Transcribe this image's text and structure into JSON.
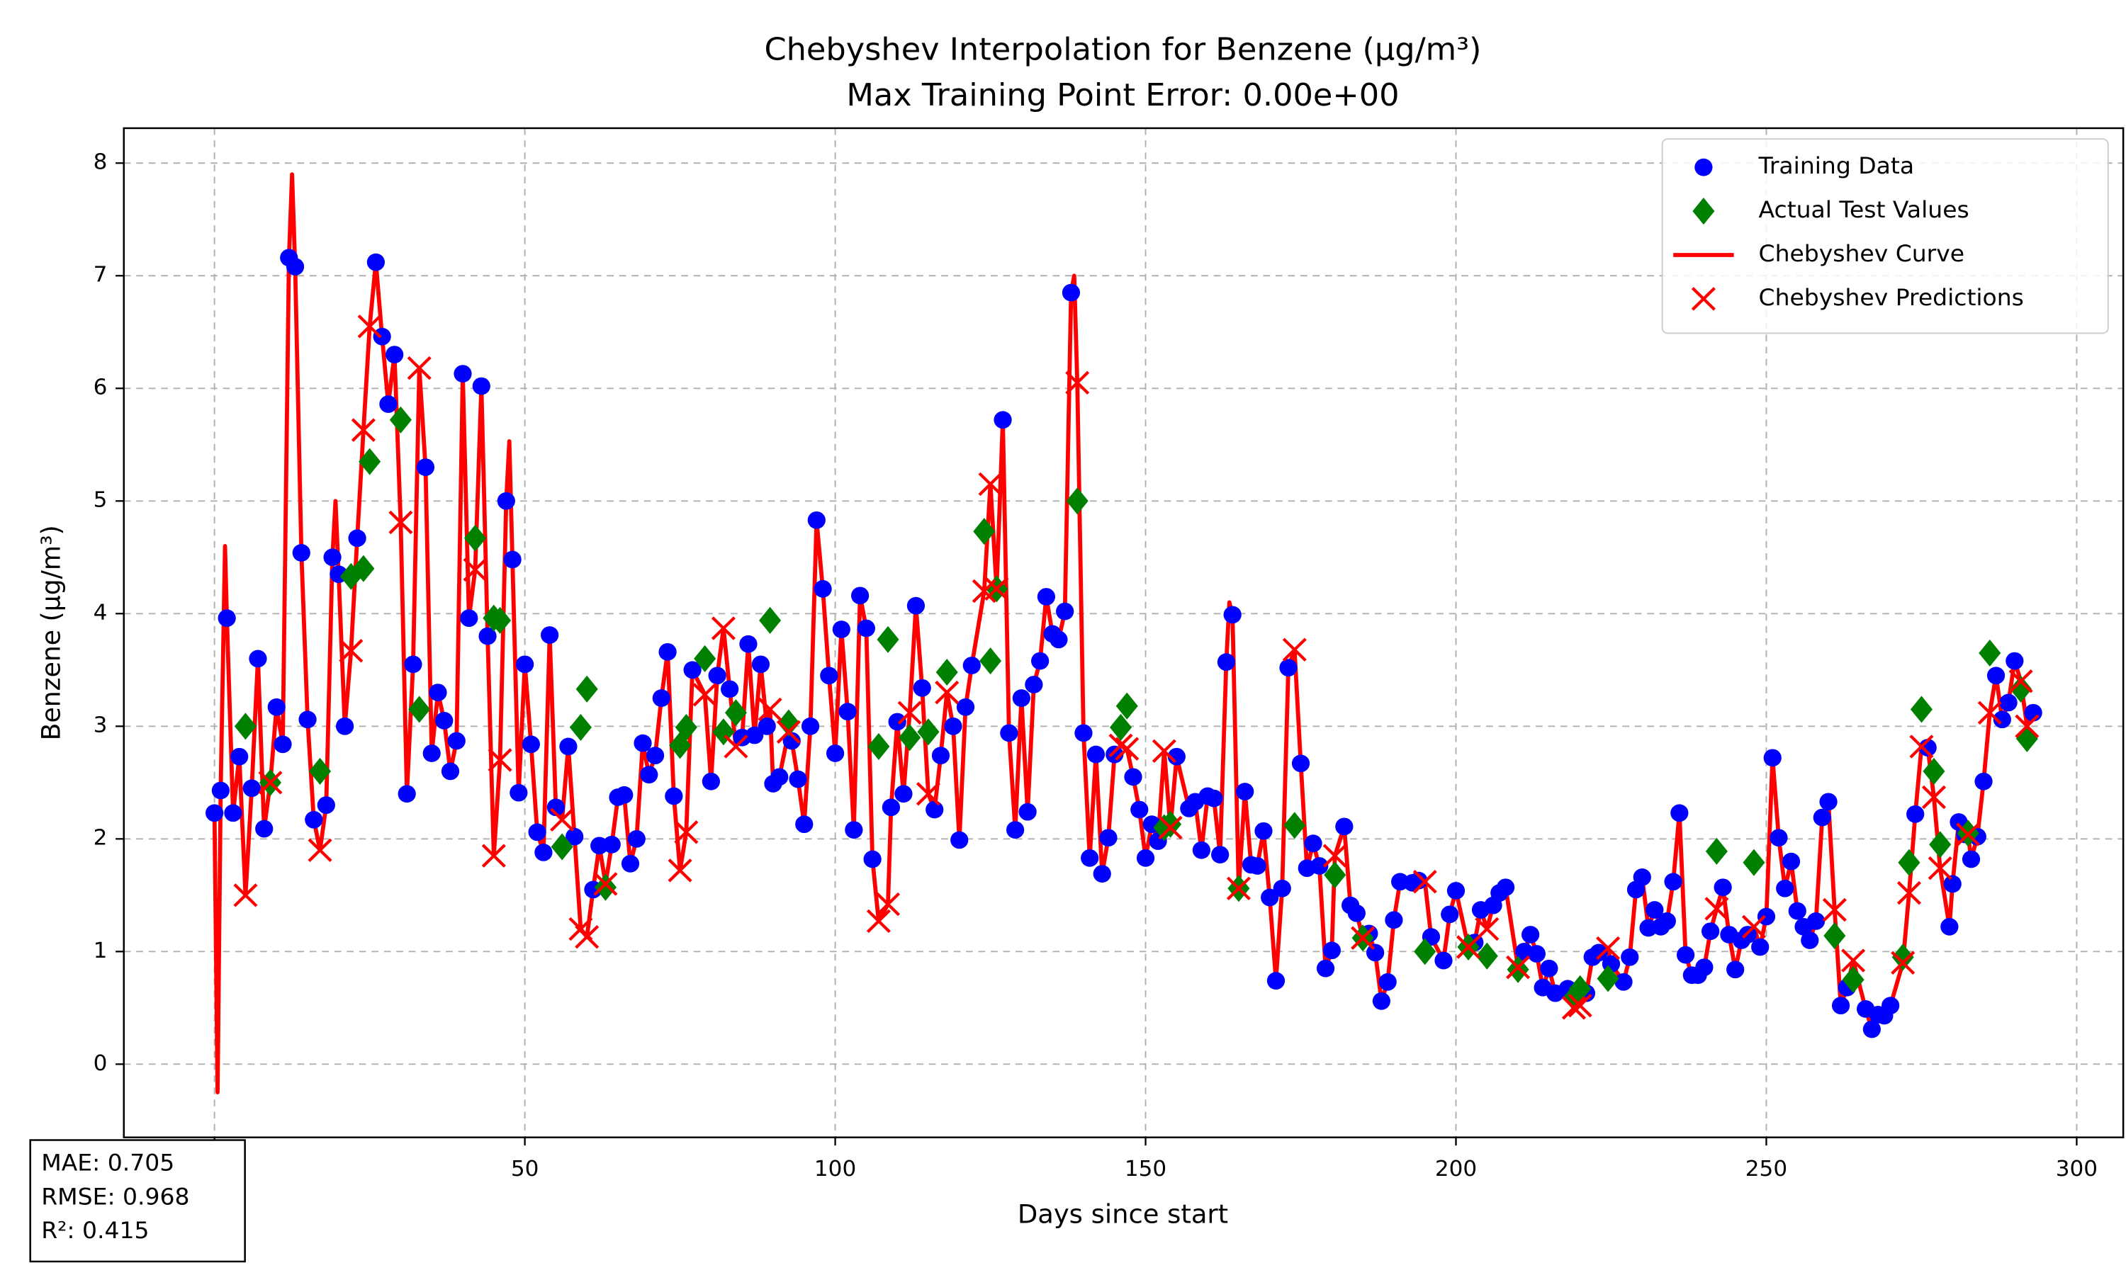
{
  "chart_data": {
    "type": "scatter",
    "title": "Chebyshev Interpolation for Benzene (µg/m³)",
    "subtitle": "Max Training Point Error: 0.00e+00",
    "xlabel": "Days since start",
    "ylabel": "Benzene (µg/m³)",
    "xlim": [
      -14.6,
      307.5
    ],
    "ylim": [
      -0.65,
      8.31
    ],
    "xticks": [
      0,
      50,
      100,
      150,
      200,
      250,
      300
    ],
    "yticks": [
      0,
      1,
      2,
      3,
      4,
      5,
      6,
      7,
      8
    ],
    "grid": true,
    "legend": "upper right",
    "stats": [
      "MAE: 0.705",
      "RMSE: 0.968",
      "R²: 0.415"
    ],
    "series": [
      {
        "name": "Training Data",
        "type": "scatter",
        "marker": "circle",
        "color": "#0000ff",
        "x": [
          0,
          1,
          2,
          3,
          4,
          6,
          7,
          8,
          10,
          11,
          12,
          13,
          14,
          15,
          16,
          18,
          19,
          20,
          21,
          23,
          26,
          27,
          28,
          29,
          31,
          32,
          34,
          35,
          36,
          37,
          38,
          39,
          40,
          41,
          43,
          44,
          47,
          48,
          49,
          50,
          51,
          52,
          53,
          54,
          55,
          57,
          58,
          61,
          62,
          64,
          65,
          66,
          67,
          68,
          69,
          70,
          71,
          72,
          73,
          74,
          77,
          80,
          81,
          83,
          85,
          86,
          87,
          88,
          89,
          90,
          91,
          93,
          94,
          95,
          96,
          97,
          98,
          99,
          100,
          101,
          102,
          103,
          104,
          105,
          106,
          109,
          110,
          111,
          113,
          114,
          116,
          117,
          119,
          120,
          121,
          122,
          127,
          128,
          129,
          130,
          131,
          132,
          133,
          134,
          135,
          136,
          137,
          138,
          140,
          141,
          142,
          143,
          144,
          145,
          148,
          149,
          150,
          151,
          152,
          155,
          157,
          158,
          159,
          160,
          161,
          162,
          163,
          164,
          166,
          167,
          168,
          169,
          170,
          171,
          172,
          173,
          175,
          176,
          177,
          178,
          179,
          180,
          182,
          183,
          184,
          186,
          187,
          188,
          189,
          190,
          191,
          193,
          194,
          196,
          198,
          199,
          200,
          203,
          204,
          206,
          207,
          208,
          211,
          212,
          213,
          214,
          215,
          216,
          218,
          221,
          222,
          223,
          225,
          227,
          228,
          229,
          230,
          231,
          232,
          233,
          234,
          235,
          236,
          237,
          238,
          239,
          240,
          241,
          243,
          244,
          245,
          246,
          247,
          249,
          250,
          251,
          252,
          253,
          254,
          255,
          256,
          257,
          258,
          259,
          260,
          262,
          263,
          266,
          267,
          268,
          269,
          270,
          274,
          276,
          279.5,
          280,
          281,
          282,
          283,
          284,
          285,
          287,
          288,
          289,
          290,
          293
        ],
        "values": [
          2.23,
          2.43,
          3.96,
          2.23,
          2.73,
          2.45,
          3.6,
          2.09,
          3.17,
          2.84,
          7.16,
          7.08,
          4.54,
          3.06,
          2.17,
          2.3,
          4.5,
          4.35,
          3.0,
          4.67,
          7.12,
          6.46,
          5.86,
          6.3,
          2.4,
          3.55,
          5.3,
          2.76,
          3.3,
          3.05,
          2.6,
          2.87,
          6.13,
          3.96,
          6.02,
          3.8,
          5.0,
          4.48,
          2.41,
          3.55,
          2.84,
          2.06,
          1.88,
          3.81,
          2.28,
          2.82,
          2.02,
          1.55,
          1.94,
          1.95,
          2.37,
          2.39,
          1.78,
          2.0,
          2.85,
          2.57,
          2.74,
          3.25,
          3.66,
          2.38,
          3.5,
          2.51,
          3.45,
          3.33,
          2.9,
          3.73,
          2.92,
          3.55,
          3.0,
          2.49,
          2.55,
          2.87,
          2.53,
          2.13,
          3.0,
          4.83,
          4.22,
          3.45,
          2.76,
          3.86,
          3.13,
          2.08,
          4.16,
          3.87,
          1.82,
          2.28,
          3.04,
          2.4,
          4.07,
          3.34,
          2.26,
          2.74,
          3.0,
          1.99,
          3.17,
          3.54,
          5.72,
          2.94,
          2.08,
          3.25,
          2.24,
          3.37,
          3.58,
          4.15,
          3.82,
          3.77,
          4.02,
          6.85,
          2.94,
          1.83,
          2.75,
          1.69,
          2.01,
          2.75,
          2.55,
          2.26,
          1.83,
          2.13,
          1.98,
          2.73,
          2.27,
          2.33,
          1.9,
          2.38,
          2.36,
          1.86,
          3.57,
          3.99,
          2.42,
          1.77,
          1.76,
          2.07,
          1.48,
          0.74,
          1.56,
          3.52,
          2.67,
          1.74,
          1.96,
          1.76,
          0.85,
          1.01,
          2.11,
          1.41,
          1.34,
          1.16,
          0.99,
          0.56,
          0.73,
          1.28,
          1.62,
          1.61,
          1.63,
          1.13,
          0.92,
          1.33,
          1.54,
          1.08,
          1.37,
          1.41,
          1.52,
          1.57,
          1.0,
          1.15,
          0.98,
          0.68,
          0.85,
          0.63,
          0.67,
          0.63,
          0.95,
          0.99,
          0.89,
          0.73,
          0.95,
          1.55,
          1.66,
          1.21,
          1.37,
          1.22,
          1.27,
          1.62,
          2.23,
          0.97,
          0.79,
          0.79,
          0.86,
          1.18,
          1.57,
          1.15,
          0.84,
          1.1,
          1.15,
          1.04,
          1.31,
          2.72,
          2.01,
          1.56,
          1.8,
          1.36,
          1.22,
          1.1,
          1.27,
          2.19,
          2.33,
          0.52,
          0.68,
          0.49,
          0.31,
          0.44,
          0.43,
          0.52,
          2.22,
          2.81,
          1.22,
          1.6,
          2.15,
          2.04,
          1.82,
          2.02,
          2.51,
          3.45,
          3.06,
          3.21,
          3.58,
          3.12
        ]
      },
      {
        "name": "Actual Test Values",
        "type": "scatter",
        "marker": "diamond",
        "color": "#008000",
        "x": [
          5,
          9,
          17,
          22,
          24,
          25,
          30,
          33,
          42,
          45,
          46,
          56,
          59,
          60,
          63,
          75,
          76,
          79,
          82,
          84,
          89.5,
          92.5,
          107,
          108.5,
          112,
          115,
          118,
          124,
          125,
          126,
          139,
          146,
          147,
          153,
          154,
          165,
          174,
          180.5,
          185,
          195,
          202,
          205,
          210,
          219,
          220,
          224.5,
          242,
          248,
          261,
          264,
          272,
          273,
          275,
          277,
          278,
          282.5,
          286,
          291,
          292
        ],
        "values": [
          3.0,
          2.5,
          2.6,
          4.33,
          4.4,
          5.35,
          5.72,
          3.15,
          4.67,
          3.96,
          3.94,
          1.93,
          2.99,
          3.33,
          1.57,
          2.83,
          2.99,
          3.6,
          2.95,
          3.12,
          3.94,
          3.03,
          2.82,
          3.77,
          2.9,
          2.95,
          3.48,
          4.73,
          3.58,
          4.22,
          5.0,
          2.99,
          3.18,
          2.1,
          2.13,
          1.56,
          2.12,
          1.68,
          1.12,
          1.0,
          1.04,
          0.96,
          0.84,
          0.59,
          0.67,
          0.76,
          1.89,
          1.79,
          1.14,
          0.75,
          0.95,
          1.79,
          3.15,
          2.6,
          1.95,
          2.05,
          3.65,
          3.33,
          2.89
        ]
      },
      {
        "name": "Chebyshev Curve",
        "type": "line",
        "color": "#ff0000",
        "x": [
          0.5,
          1.7,
          12.5,
          19.5,
          47.5,
          138.5,
          163.5
        ],
        "values": [
          -0.25,
          4.6,
          7.9,
          5.0,
          5.53,
          7.0,
          4.1
        ]
      },
      {
        "name": "Chebyshev Predictions",
        "type": "scatter",
        "marker": "x",
        "color": "#ff0000",
        "x": [
          5,
          9,
          17,
          22,
          24,
          25,
          30,
          33,
          42,
          45,
          46,
          56,
          59,
          60,
          63,
          75,
          76,
          79,
          82,
          84,
          89.5,
          92.5,
          107,
          108.5,
          112,
          115,
          118,
          124,
          125,
          126,
          139,
          146,
          147,
          153,
          154,
          165,
          174,
          180.5,
          185,
          195,
          202,
          205,
          210,
          219,
          220,
          224.5,
          242,
          248,
          261,
          264,
          272,
          273,
          275,
          277,
          278,
          282.5,
          286,
          291,
          292
        ],
        "values": [
          1.5,
          2.5,
          1.9,
          3.67,
          5.63,
          6.55,
          4.81,
          6.18,
          4.39,
          1.85,
          2.7,
          2.17,
          1.2,
          1.13,
          1.6,
          1.72,
          2.06,
          3.28,
          3.87,
          2.82,
          3.15,
          2.95,
          1.27,
          1.42,
          3.12,
          2.4,
          3.3,
          4.2,
          5.15,
          4.22,
          6.05,
          2.83,
          2.8,
          2.78,
          2.1,
          1.56,
          3.68,
          1.85,
          1.12,
          1.62,
          1.04,
          1.2,
          0.86,
          0.5,
          0.52,
          1.03,
          1.38,
          1.22,
          1.37,
          0.92,
          0.9,
          1.52,
          2.82,
          2.37,
          1.74,
          2.04,
          3.12,
          3.4,
          3.0
        ]
      }
    ]
  }
}
